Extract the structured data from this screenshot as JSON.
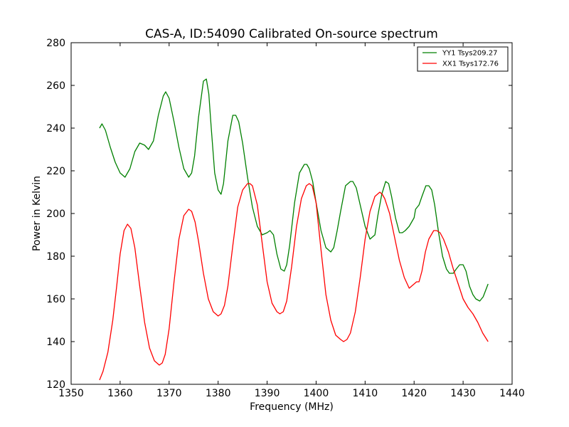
{
  "chart_data": {
    "type": "line",
    "title": "CAS-A, ID:54090 Calibrated On-source spectrum",
    "xlabel": "Frequency (MHz)",
    "ylabel": "Power in Kelvin",
    "xlim": [
      1350,
      1440
    ],
    "ylim": [
      120,
      280
    ],
    "xticks": [
      1350,
      1360,
      1370,
      1380,
      1390,
      1400,
      1410,
      1420,
      1430,
      1440
    ],
    "yticks": [
      120,
      140,
      160,
      180,
      200,
      220,
      240,
      260,
      280
    ],
    "grid": false,
    "legend_position": "top-right",
    "series": [
      {
        "name": "YY1 Tsys209.27",
        "color": "#008000",
        "x": [
          1355.8,
          1356.3,
          1357,
          1358,
          1359,
          1360,
          1361,
          1362,
          1363,
          1364,
          1365,
          1365.8,
          1366.8,
          1367.8,
          1368.8,
          1369.3,
          1370,
          1371,
          1372,
          1373,
          1374,
          1374.6,
          1375.2,
          1376,
          1377,
          1377.6,
          1378.1,
          1378.6,
          1379.3,
          1380,
          1380.6,
          1381.1,
          1382,
          1383,
          1383.6,
          1384.2,
          1385,
          1386,
          1387,
          1388,
          1389,
          1390,
          1390.6,
          1391.3,
          1392,
          1392.8,
          1393.5,
          1394,
          1394.6,
          1395.6,
          1396.6,
          1397.6,
          1398.1,
          1398.6,
          1399.3,
          1400,
          1401,
          1402,
          1403,
          1403.6,
          1404.3,
          1405,
          1406,
          1407,
          1407.5,
          1408.2,
          1409,
          1410,
          1411,
          1412,
          1412.6,
          1413.4,
          1414.2,
          1414.8,
          1415.4,
          1416.2,
          1417,
          1417.6,
          1418.2,
          1419,
          1420,
          1420.3,
          1421,
          1421.6,
          1422.4,
          1423,
          1423.6,
          1424.2,
          1425,
          1425.8,
          1426.6,
          1427.2,
          1428,
          1428.6,
          1429.3,
          1430,
          1430.6,
          1431.3,
          1432,
          1432.6,
          1433.4,
          1434.1,
          1435.1
        ],
        "values": [
          240,
          242,
          239,
          231,
          224,
          219,
          217,
          221,
          229,
          233,
          232,
          230,
          234,
          246,
          255,
          257,
          254,
          243,
          231,
          221,
          217,
          219,
          227,
          245,
          262,
          263,
          256,
          240,
          219,
          211,
          209,
          214,
          234,
          246,
          246,
          243,
          233,
          217,
          203,
          194,
          190,
          191,
          192,
          190,
          181,
          174,
          173,
          176,
          185,
          205,
          219,
          223,
          223,
          221,
          215,
          205,
          192,
          184,
          182,
          184,
          192,
          201,
          213,
          215,
          215,
          212,
          204,
          194,
          188,
          190,
          199,
          209,
          215,
          214,
          208,
          198,
          191,
          191,
          192,
          194,
          198,
          202,
          204,
          208,
          213,
          213,
          211,
          204,
          191,
          180,
          174,
          172,
          172,
          174,
          176,
          176,
          173,
          166,
          162,
          160,
          159,
          161,
          167
        ]
      },
      {
        "name": "XX1 Tsys172.76",
        "color": "#ff0000",
        "x": [
          1355.8,
          1356.5,
          1357.5,
          1358.5,
          1359.3,
          1360,
          1360.8,
          1361.5,
          1362.2,
          1363,
          1364,
          1365,
          1366,
          1367,
          1368,
          1368.6,
          1369.2,
          1370,
          1371,
          1372,
          1373,
          1374,
          1374.6,
          1375.3,
          1376,
          1377,
          1378,
          1379,
          1380,
          1380.6,
          1381.3,
          1382,
          1383,
          1384,
          1385,
          1386,
          1386.5,
          1387,
          1388,
          1389,
          1390,
          1391,
          1392,
          1392.6,
          1393.3,
          1394,
          1395,
          1396,
          1397,
          1398,
          1398.6,
          1399.2,
          1400,
          1401,
          1402,
          1403,
          1404,
          1405,
          1405.6,
          1406.3,
          1407,
          1408,
          1409,
          1410,
          1411,
          1412,
          1413,
          1413.5,
          1414,
          1415,
          1416,
          1417,
          1418,
          1419,
          1420,
          1420.5,
          1421,
          1421.6,
          1422.3,
          1423,
          1424,
          1424.6,
          1425.3,
          1426,
          1427,
          1428,
          1429,
          1430,
          1431,
          1432,
          1433,
          1434,
          1435.1
        ],
        "values": [
          122,
          126,
          135,
          150,
          166,
          181,
          192,
          195,
          193,
          184,
          166,
          149,
          137,
          131,
          129,
          130,
          134,
          146,
          168,
          188,
          199,
          202,
          201,
          196,
          187,
          172,
          160,
          154,
          152,
          153,
          157,
          166,
          185,
          203,
          211,
          214,
          214,
          213,
          204,
          186,
          168,
          158,
          154,
          153,
          154,
          159,
          175,
          194,
          207,
          213,
          214,
          213,
          205,
          183,
          162,
          150,
          143,
          141,
          140,
          141,
          144,
          154,
          170,
          188,
          201,
          208,
          210,
          209,
          207,
          200,
          189,
          178,
          170,
          165,
          167,
          168,
          168,
          173,
          182,
          188,
          192,
          192,
          191,
          188,
          182,
          174,
          167,
          160,
          156,
          153,
          149,
          144,
          140
        ]
      }
    ]
  }
}
